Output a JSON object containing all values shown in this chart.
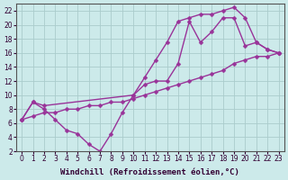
{
  "background_color": "#cceaea",
  "grid_color": "#aacccc",
  "line_color": "#993399",
  "marker": "D",
  "marker_size": 2.5,
  "line_width": 1.0,
  "xlim": [
    -0.5,
    23.5
  ],
  "ylim": [
    2,
    23
  ],
  "xticks": [
    0,
    1,
    2,
    3,
    4,
    5,
    6,
    7,
    8,
    9,
    10,
    11,
    12,
    13,
    14,
    15,
    16,
    17,
    18,
    19,
    20,
    21,
    22,
    23
  ],
  "yticks": [
    2,
    4,
    6,
    8,
    10,
    12,
    14,
    16,
    18,
    20,
    22
  ],
  "xlabel": "Windchill (Refroidissement éolien,°C)",
  "xlabel_fontsize": 6.5,
  "tick_fontsize": 5.5,
  "series": [
    {
      "x": [
        0,
        1,
        2,
        3,
        4,
        5,
        6,
        7,
        8,
        9,
        10,
        11,
        12,
        13,
        14,
        15,
        16,
        17,
        18,
        19,
        20,
        21,
        22,
        23
      ],
      "y": [
        6.5,
        9.0,
        8.0,
        6.5,
        5.0,
        4.5,
        3.0,
        2.0,
        4.5,
        7.5,
        10.0,
        11.5,
        12.0,
        12.0,
        14.5,
        20.5,
        17.5,
        19.0,
        21.0,
        21.0,
        17.0,
        17.5,
        16.5,
        16.0
      ]
    },
    {
      "x": [
        0,
        1,
        2,
        3,
        4,
        5,
        6,
        7,
        8,
        9,
        10,
        11,
        12,
        13,
        14,
        15,
        16,
        17,
        18,
        19,
        20,
        21,
        22,
        23
      ],
      "y": [
        6.5,
        7.0,
        7.5,
        7.5,
        8.0,
        8.0,
        8.5,
        8.5,
        9.0,
        9.0,
        9.5,
        10.0,
        10.5,
        11.0,
        11.5,
        12.0,
        12.5,
        13.0,
        13.5,
        14.5,
        15.0,
        15.5,
        15.5,
        16.0
      ]
    },
    {
      "x": [
        0,
        1,
        2,
        10,
        11,
        12,
        13,
        14,
        15,
        16,
        17,
        18,
        19,
        20,
        21,
        22,
        23
      ],
      "y": [
        6.5,
        9.0,
        8.5,
        10.0,
        12.5,
        15.0,
        17.5,
        20.5,
        21.0,
        21.5,
        21.5,
        22.0,
        22.5,
        21.0,
        17.5,
        16.5,
        16.0
      ]
    }
  ]
}
